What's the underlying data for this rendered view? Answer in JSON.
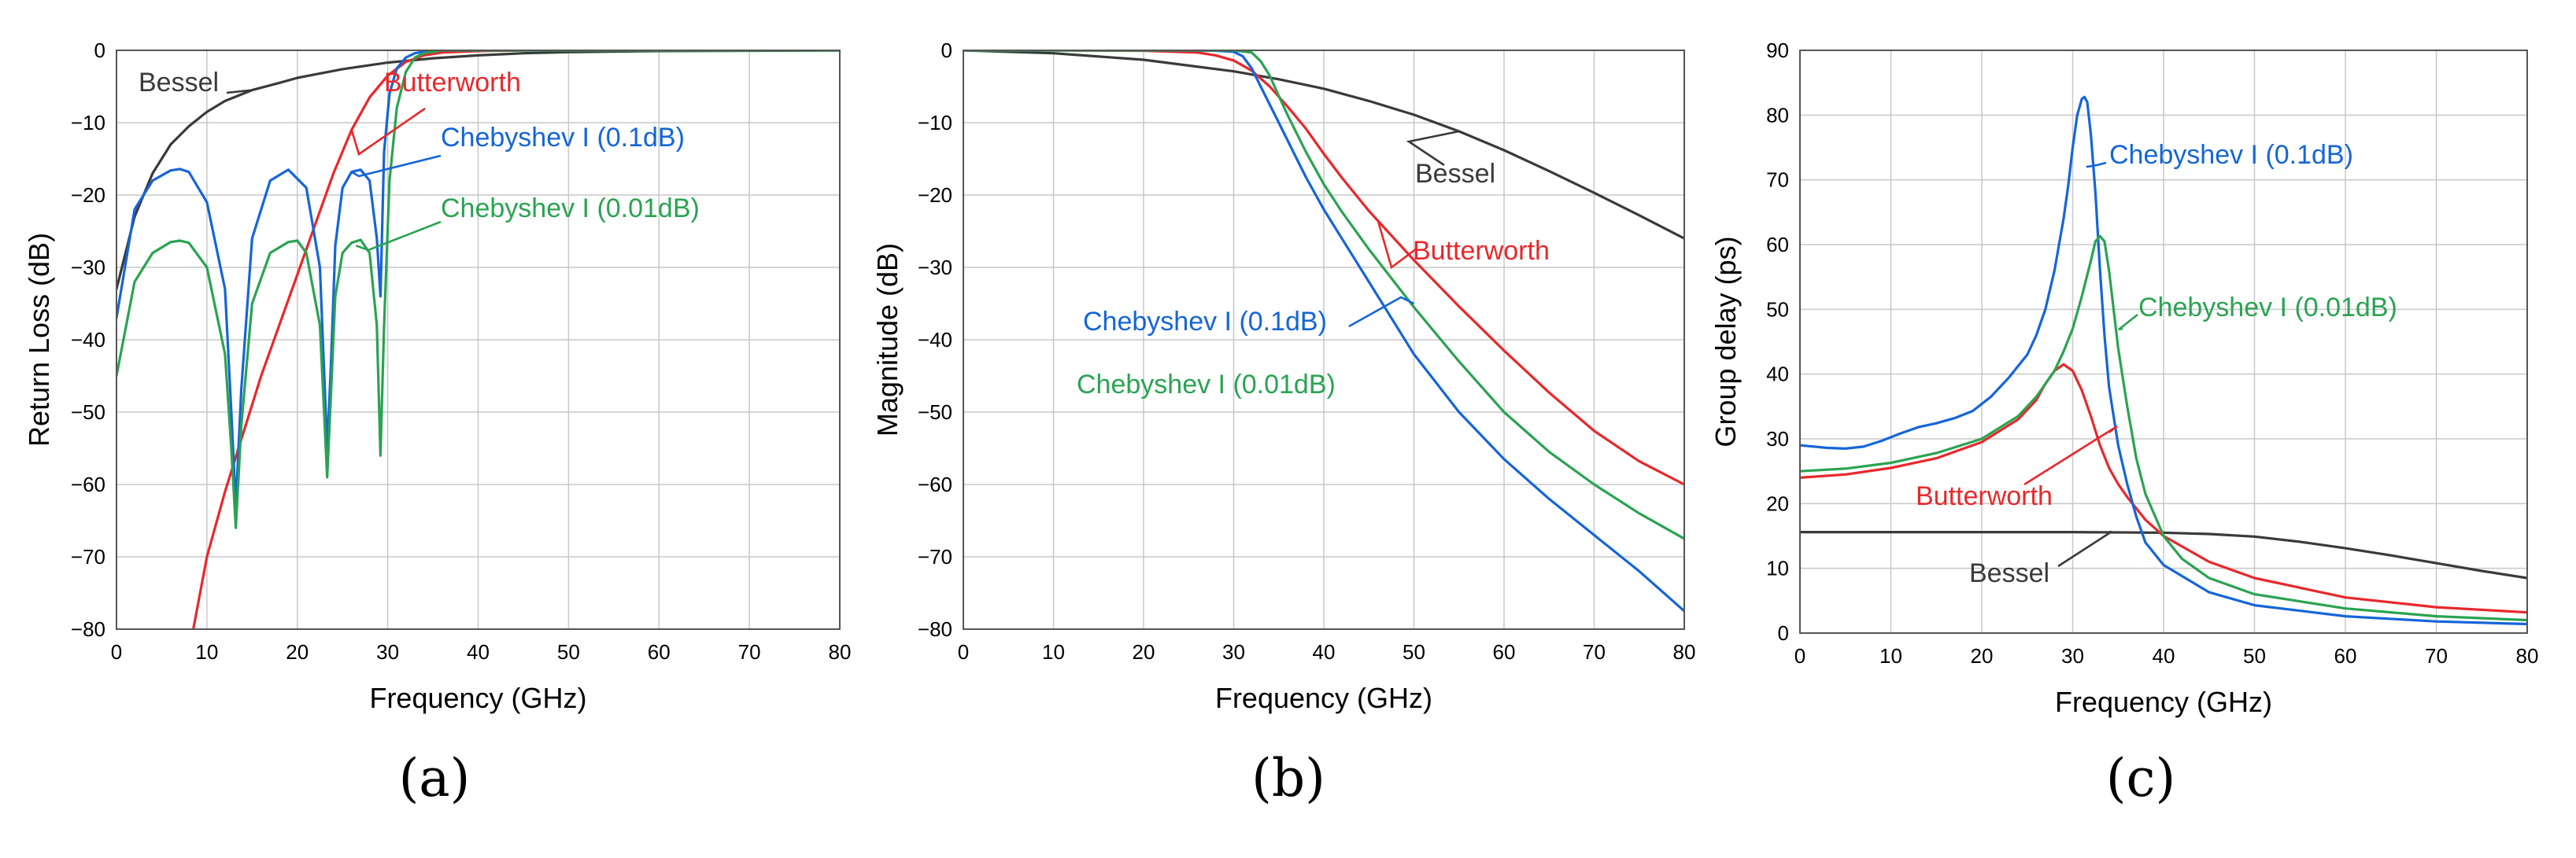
{
  "figure": {
    "panel_labels": [
      "(a)",
      "(b)",
      "(c)"
    ]
  },
  "colors": {
    "Bessel": "#3a3a3a",
    "Butterworth": "#e8282b",
    "Chebyshev I (0.1dB)": "#1565d8",
    "Chebyshev I (0.01dB)": "#2aa352"
  },
  "chart_data": [
    {
      "type": "line",
      "panel": "(a)",
      "title": "",
      "xlabel": "Frequency (GHz)",
      "ylabel": "Return Loss (dB)",
      "xlim": [
        0,
        80
      ],
      "ylim": [
        -80,
        0
      ],
      "xticks": [
        0,
        10,
        20,
        30,
        40,
        50,
        60,
        70,
        80
      ],
      "yticks": [
        0,
        -10,
        -20,
        -30,
        -40,
        -50,
        -60,
        -70,
        -80
      ],
      "grid": true,
      "series": [
        {
          "name": "Bessel",
          "x": [
            0,
            2,
            4,
            6,
            8,
            10,
            12,
            15,
            18,
            20,
            25,
            30,
            35,
            40,
            45,
            50,
            60,
            70,
            80
          ],
          "y": [
            -33,
            -23,
            -17,
            -13,
            -10.5,
            -8.5,
            -7,
            -5.5,
            -4.5,
            -3.8,
            -2.6,
            -1.7,
            -1.1,
            -0.7,
            -0.4,
            -0.25,
            -0.1,
            -0.05,
            0
          ]
        },
        {
          "name": "Butterworth",
          "x": [
            8.5,
            10,
            12,
            14,
            16,
            18,
            20,
            22,
            24,
            26,
            28,
            30,
            32,
            34,
            36,
            40,
            45,
            50,
            60,
            80
          ],
          "y": [
            -80,
            -70,
            -61,
            -53,
            -45,
            -38,
            -31,
            -24,
            -17,
            -11,
            -6.5,
            -3.5,
            -1.6,
            -0.7,
            -0.3,
            -0.1,
            0,
            0,
            0,
            0
          ]
        },
        {
          "name": "Chebyshev I (0.1dB)",
          "x": [
            0,
            2,
            4,
            6,
            7,
            8,
            10,
            12,
            12.7,
            13.2,
            13.8,
            15,
            17,
            19,
            21,
            22.5,
            23.3,
            23.7,
            24.2,
            25,
            26,
            27,
            28,
            28.8,
            29.2,
            29.6,
            30.2,
            31,
            32,
            33,
            34,
            36,
            40,
            50,
            60,
            80
          ],
          "y": [
            -37,
            -22,
            -18,
            -16.6,
            -16.4,
            -16.8,
            -21,
            -33,
            -50,
            -63,
            -47,
            -26,
            -18,
            -16.5,
            -19,
            -30,
            -55,
            -44,
            -27,
            -19,
            -16.8,
            -16.5,
            -18,
            -26,
            -34,
            -14,
            -6,
            -2.5,
            -1,
            -0.4,
            -0.2,
            0,
            0,
            0,
            0,
            0
          ]
        },
        {
          "name": "Chebyshev I (0.01dB)",
          "x": [
            0,
            2,
            4,
            6,
            7,
            8,
            10,
            12,
            12.7,
            13.2,
            13.8,
            15,
            17,
            19,
            20,
            21,
            22.5,
            23.3,
            23.7,
            24.2,
            25,
            26,
            27,
            28,
            28.8,
            29.2,
            29.6,
            30.2,
            31,
            32,
            33,
            34,
            36,
            40,
            50,
            60,
            80
          ],
          "y": [
            -45,
            -32,
            -28,
            -26.5,
            -26.3,
            -26.6,
            -30,
            -42,
            -55,
            -66,
            -52,
            -35,
            -28,
            -26.5,
            -26.3,
            -28,
            -38,
            -59,
            -48,
            -34,
            -28,
            -26.6,
            -26.2,
            -28,
            -38,
            -56,
            -38,
            -18,
            -8,
            -3,
            -1,
            -0.4,
            0,
            0,
            0,
            0,
            0
          ]
        }
      ],
      "annotations": [
        {
          "text": "Bessel",
          "series": "Bessel",
          "at_x": 15,
          "at_y": -5.5
        },
        {
          "text": "Butterworth",
          "series": "Butterworth",
          "at_x": 26,
          "at_y": -11
        },
        {
          "text": "Chebyshev I (0.1dB)",
          "series": "Chebyshev I (0.1dB)",
          "at_x": 26,
          "at_y": -16.8
        },
        {
          "text": "Chebyshev I (0.01dB)",
          "series": "Chebyshev I (0.01dB)",
          "at_x": 26.5,
          "at_y": -27
        }
      ]
    },
    {
      "type": "line",
      "panel": "(b)",
      "title": "",
      "xlabel": "Frequency (GHz)",
      "ylabel": "Magnitude (dB)",
      "xlim": [
        0,
        80
      ],
      "ylim": [
        -80,
        0
      ],
      "xticks": [
        0,
        10,
        20,
        30,
        40,
        50,
        60,
        70,
        80
      ],
      "yticks": [
        0,
        -10,
        -20,
        -30,
        -40,
        -50,
        -60,
        -70,
        -80
      ],
      "grid": true,
      "series": [
        {
          "name": "Bessel",
          "x": [
            0,
            10,
            20,
            30,
            35,
            40,
            45,
            50,
            55,
            60,
            65,
            70,
            75,
            80
          ],
          "y": [
            0,
            -0.4,
            -1.3,
            -2.9,
            -4,
            -5.3,
            -7,
            -8.9,
            -11.2,
            -13.8,
            -16.7,
            -19.7,
            -22.8,
            -26
          ]
        },
        {
          "name": "Butterworth",
          "x": [
            0,
            10,
            20,
            26,
            28,
            30,
            32,
            34,
            36,
            38,
            40,
            42,
            45,
            50,
            55,
            60,
            65,
            70,
            75,
            80
          ],
          "y": [
            0,
            0,
            -0.05,
            -0.3,
            -0.7,
            -1.4,
            -2.8,
            -5,
            -7.8,
            -10.8,
            -14.3,
            -17.6,
            -22.2,
            -29,
            -35.4,
            -41.5,
            -47.3,
            -52.6,
            -56.8,
            -60
          ]
        },
        {
          "name": "Chebyshev I (0.1dB)",
          "x": [
            0,
            10,
            20,
            25,
            28,
            30,
            31,
            32,
            33,
            34,
            35,
            36,
            38,
            40,
            42,
            45,
            50,
            55,
            60,
            65,
            70,
            75,
            80
          ],
          "y": [
            0,
            0,
            0,
            0,
            -0.05,
            -0.2,
            -0.8,
            -2.5,
            -5,
            -7.5,
            -10,
            -12.5,
            -17.5,
            -22,
            -26,
            -32,
            -42,
            -50,
            -56.5,
            -62,
            -67,
            -72,
            -77.5
          ]
        },
        {
          "name": "Chebyshev I (0.01dB)",
          "x": [
            0,
            10,
            20,
            25,
            30,
            32,
            33,
            34,
            35,
            36,
            38,
            40,
            42,
            45,
            50,
            55,
            60,
            65,
            70,
            75,
            80
          ],
          "y": [
            0,
            0,
            0,
            0,
            0,
            -0.3,
            -1.5,
            -3.5,
            -6.3,
            -9,
            -14,
            -18.5,
            -22.3,
            -27.5,
            -35.5,
            -43,
            -50,
            -55.5,
            -60,
            -64,
            -67.5
          ]
        }
      ],
      "annotations": [
        {
          "text": "Bessel",
          "series": "Bessel",
          "at_x": 55,
          "at_y": -11.2
        },
        {
          "text": "Butterworth",
          "series": "Butterworth",
          "at_x": 46,
          "at_y": -23.5
        },
        {
          "text": "Chebyshev I (0.1dB)",
          "series": "Chebyshev I (0.1dB)",
          "at_x": 50,
          "at_y": -35
        },
        {
          "text": "Chebyshev I (0.01dB)",
          "series": "Chebyshev I (0.01dB)",
          "at_x": 0,
          "at_y": 0
        }
      ]
    },
    {
      "type": "line",
      "panel": "(c)",
      "title": "",
      "xlabel": "Frequency (GHz)",
      "ylabel": "Group delay (ps)",
      "xlim": [
        0,
        80
      ],
      "ylim": [
        0,
        90
      ],
      "xticks": [
        0,
        10,
        20,
        30,
        40,
        50,
        60,
        70,
        80
      ],
      "yticks": [
        0,
        10,
        20,
        30,
        40,
        50,
        60,
        70,
        80,
        90
      ],
      "grid": true,
      "series": [
        {
          "name": "Bessel",
          "x": [
            0,
            10,
            20,
            30,
            40,
            45,
            50,
            55,
            60,
            65,
            70,
            75,
            80
          ],
          "y": [
            15.6,
            15.6,
            15.6,
            15.6,
            15.5,
            15.3,
            14.9,
            14.1,
            13.1,
            12,
            10.8,
            9.6,
            8.5
          ]
        },
        {
          "name": "Butterworth",
          "x": [
            0,
            5,
            10,
            15,
            20,
            24,
            26,
            27,
            28,
            29,
            30,
            31,
            32,
            33,
            34,
            35,
            36,
            38,
            40,
            45,
            50,
            60,
            70,
            80
          ],
          "y": [
            24,
            24.5,
            25.5,
            27,
            29.5,
            33,
            36,
            38.5,
            40.5,
            41.5,
            40.5,
            37.5,
            33.5,
            29,
            25.5,
            23,
            21,
            17.5,
            15,
            11,
            8.5,
            5.5,
            4,
            3.2
          ]
        },
        {
          "name": "Chebyshev I (0.1dB)",
          "x": [
            0,
            3,
            5,
            7,
            9,
            11,
            13,
            15,
            17,
            19,
            21,
            23,
            25,
            26,
            27,
            28,
            29,
            29.5,
            30,
            30.5,
            31,
            31.3,
            31.6,
            32,
            32.5,
            33,
            33.5,
            34,
            35,
            36,
            37,
            38,
            40,
            45,
            50,
            60,
            70,
            80
          ],
          "y": [
            29,
            28.6,
            28.5,
            28.8,
            29.7,
            30.8,
            31.8,
            32.4,
            33.2,
            34.3,
            36.5,
            39.5,
            43,
            46,
            50,
            56,
            64,
            69,
            75,
            80,
            82.5,
            82.8,
            82,
            77,
            68,
            56,
            46,
            38,
            29,
            23,
            18,
            14,
            10.5,
            6.3,
            4.3,
            2.6,
            1.8,
            1.4
          ]
        },
        {
          "name": "Chebyshev I (0.01dB)",
          "x": [
            0,
            5,
            10,
            15,
            20,
            24,
            26,
            28,
            29,
            30,
            31,
            32,
            32.5,
            33,
            33.5,
            34,
            34.5,
            35,
            36,
            37,
            38,
            40,
            42,
            45,
            50,
            60,
            70,
            80
          ],
          "y": [
            25,
            25.4,
            26.3,
            27.8,
            30,
            33.5,
            36.5,
            40.5,
            43.5,
            47,
            52,
            57.5,
            60.5,
            61.3,
            60.5,
            56,
            50,
            44,
            35,
            27,
            21.5,
            15,
            11.5,
            8.5,
            6,
            3.8,
            2.6,
            2
          ]
        }
      ],
      "annotations": [
        {
          "text": "Chebyshev I (0.1dB)",
          "series": "Chebyshev I (0.1dB)",
          "at_x": 31.5,
          "at_y": 72
        },
        {
          "text": "Chebyshev I (0.01dB)",
          "series": "Chebyshev I (0.01dB)",
          "at_x": 35.5,
          "at_y": 47
        },
        {
          "text": "Butterworth",
          "series": "Butterworth",
          "at_x": 34,
          "at_y": 31
        },
        {
          "text": "Bessel",
          "series": "Bessel",
          "at_x": 34,
          "at_y": 15.6
        }
      ]
    }
  ]
}
